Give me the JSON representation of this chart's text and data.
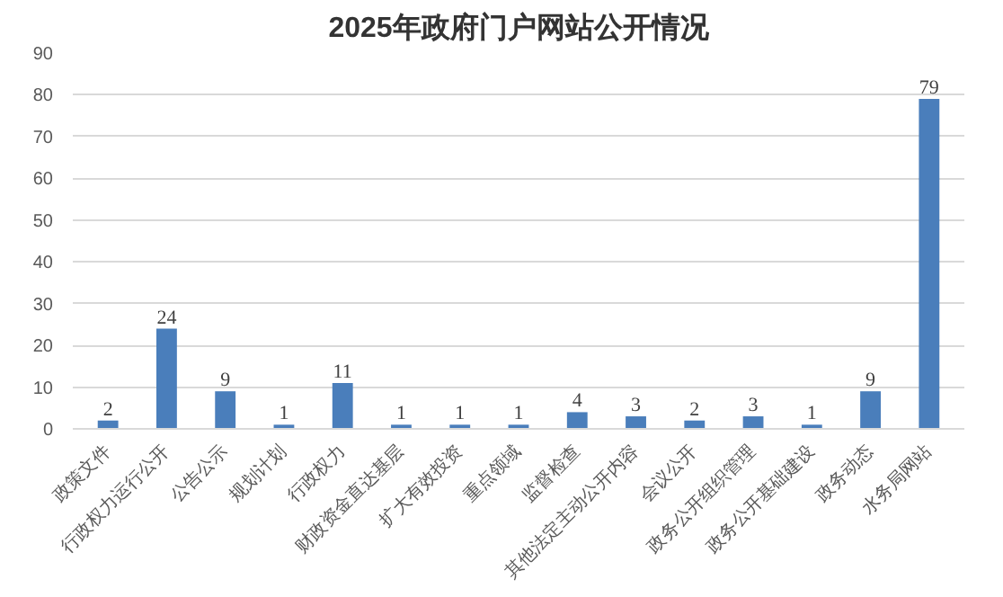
{
  "chart_data": {
    "type": "bar",
    "title": "2025年政府门户网站公开情况",
    "categories": [
      "政策文件",
      "行政权力运行公开",
      "公告公示",
      "规划计划",
      "行政权力",
      "财政资金直达基层",
      "扩大有效投资",
      "重点领域",
      "监督检查",
      "其他法定主动公开内容",
      "会议公开",
      "政务公开组织管理",
      "政务公开基础建设",
      "政务动态",
      "水务局网站"
    ],
    "values": [
      2,
      24,
      9,
      1,
      11,
      1,
      1,
      1,
      4,
      3,
      2,
      3,
      1,
      9,
      79
    ],
    "color": "#4a7ebb",
    "ylim": [
      0,
      90
    ],
    "yticks": [
      0,
      10,
      20,
      30,
      40,
      50,
      60,
      70,
      80,
      90
    ],
    "grid": "y",
    "data_labels": true
  }
}
